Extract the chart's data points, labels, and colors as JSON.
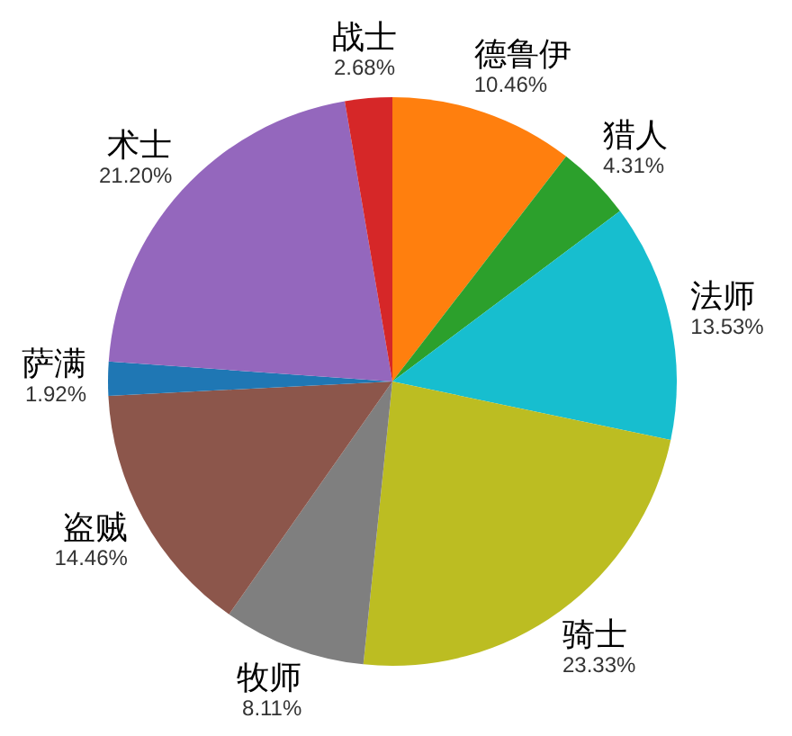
{
  "chart_data": {
    "type": "pie",
    "categories": [
      "德鲁伊",
      "猎人",
      "法师",
      "骑士",
      "牧师",
      "盗贼",
      "萨满",
      "术士",
      "战士"
    ],
    "values": [
      10.46,
      4.31,
      13.53,
      23.33,
      8.11,
      14.46,
      1.92,
      21.2,
      2.68
    ],
    "value_labels": [
      "10.46%",
      "4.31%",
      "13.53%",
      "23.33%",
      "8.11%",
      "14.46%",
      "1.92%",
      "21.20%",
      "2.68%"
    ],
    "colors": [
      "#ff7f0e",
      "#2ca02c",
      "#17becf",
      "#bcbd22",
      "#7f7f7f",
      "#8c564b",
      "#1f77b4",
      "#9467bd",
      "#d62728"
    ]
  }
}
